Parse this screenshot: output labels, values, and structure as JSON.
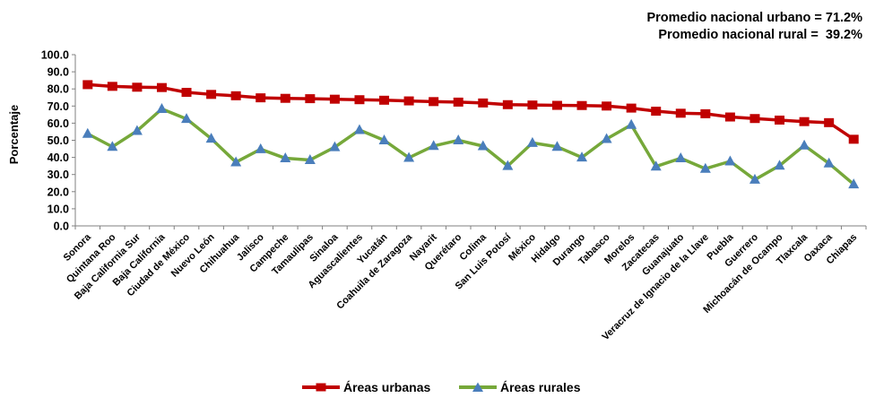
{
  "chart_data": {
    "type": "line",
    "ylabel": "Porcentaje",
    "ylim": [
      0,
      100
    ],
    "yticks": [
      "0.0",
      "10.0",
      "20.0",
      "30.0",
      "40.0",
      "50.0",
      "60.0",
      "70.0",
      "80.0",
      "90.0",
      "100.0"
    ],
    "grid": false,
    "legend_position": "bottom",
    "annotations": [
      "Promedio nacional urbano = 71.2%",
      "Promedio nacional rural =  39.2%"
    ],
    "categories": [
      "Sonora",
      "Quintana Roo",
      "Baja California Sur",
      "Baja California",
      "Ciudad de México",
      "Nuevo León",
      "Chihuahua",
      "Jalisco",
      "Campeche",
      "Tamaulipas",
      "Sinaloa",
      "Aguascalientes",
      "Yucatán",
      "Coahuila de Zaragoza",
      "Nayarit",
      "Querétaro",
      "Colima",
      "San Luis Potosí",
      "México",
      "Hidalgo",
      "Durango",
      "Tabasco",
      "Morelos",
      "Zacatecas",
      "Guanajuato",
      "Veracruz de Ignacio de la Llave",
      "Puebla",
      "Guerrero",
      "Michoacán de Ocampo",
      "Tlaxcala",
      "Oaxaca",
      "Chiapas"
    ],
    "series": [
      {
        "name": "Áreas urbanas",
        "color": "#c00000",
        "marker": "square",
        "values": [
          82.5,
          81.5,
          81.0,
          80.8,
          78.0,
          76.8,
          76.0,
          74.8,
          74.5,
          74.3,
          74.0,
          73.7,
          73.4,
          73.0,
          72.6,
          72.3,
          71.8,
          70.8,
          70.6,
          70.4,
          70.3,
          70.0,
          68.8,
          67.0,
          65.8,
          65.5,
          63.6,
          62.7,
          61.8,
          60.9,
          60.3,
          50.6
        ]
      },
      {
        "name": "Áreas rurales",
        "color": "#76a83a",
        "marker": "triangle",
        "values": [
          53.8,
          46.2,
          55.5,
          68.3,
          62.5,
          51.0,
          37.2,
          44.8,
          39.5,
          38.5,
          46.0,
          56.0,
          50.0,
          39.8,
          46.7,
          50.0,
          46.6,
          35.0,
          48.5,
          46.2,
          40.0,
          50.8,
          59.0,
          34.7,
          39.5,
          33.4,
          37.7,
          27.0,
          35.2,
          47.0,
          36.5,
          24.3
        ]
      }
    ]
  }
}
